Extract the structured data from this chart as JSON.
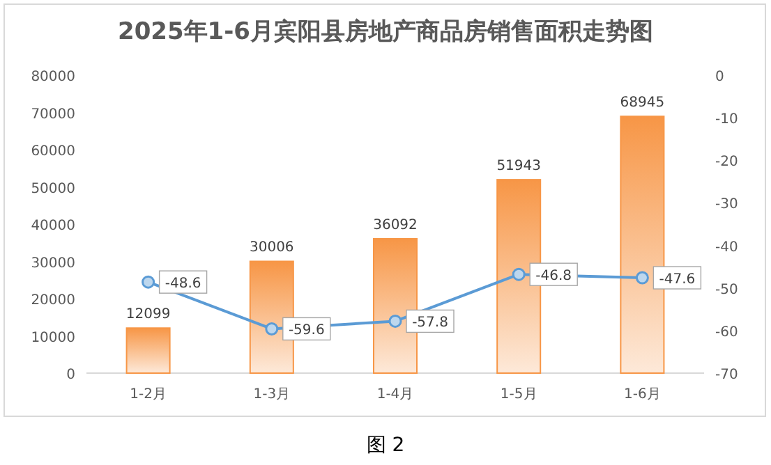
{
  "chart_data": {
    "type": "bar",
    "title": "2025年1-6月宾阳县房地产商品房销售面积走势图",
    "categories": [
      "1-2月",
      "1-3月",
      "1-4月",
      "1-5月",
      "1-6月"
    ],
    "series": [
      {
        "color": "#f79646",
        "values": [
          12099,
          30006,
          36092,
          51943,
          68945
        ]
      },
      {
        "type": "line",
        "axis": "y2",
        "color": "#5b9bd5",
        "values": [
          -48.6,
          -59.6,
          -57.8,
          -46.8,
          -47.6
        ]
      }
    ],
    "ylim": [
      0,
      80000
    ],
    "yticks": [
      0,
      10000,
      20000,
      30000,
      40000,
      50000,
      60000,
      70000,
      80000
    ],
    "y2lim": [
      -70,
      0
    ],
    "y2ticks": [
      -70,
      -60,
      -50,
      -40,
      -30,
      -20,
      -10,
      0
    ],
    "marker": "circle",
    "data_labels": true,
    "grid": false,
    "annotations": [
      "图 2"
    ]
  }
}
